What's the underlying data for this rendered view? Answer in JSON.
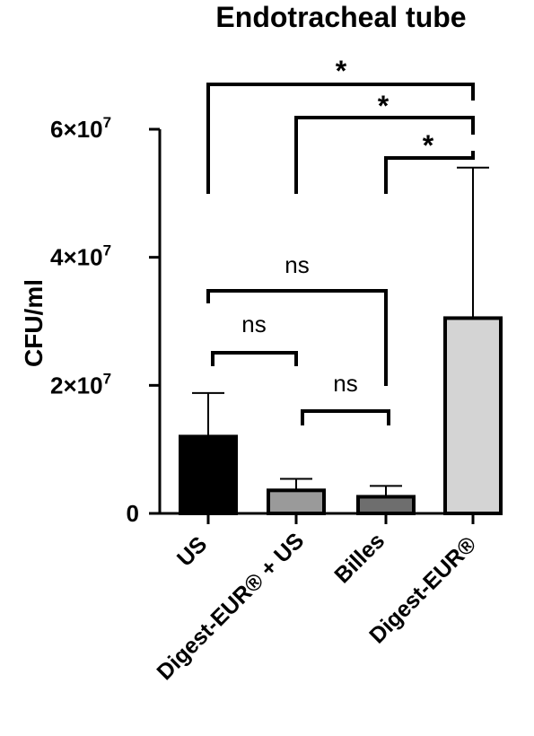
{
  "chart_data": {
    "type": "bar",
    "title": "Endotracheal tube",
    "ylabel": "CFU/ml",
    "xlabel": "",
    "ylim": [
      0,
      60000000
    ],
    "yticks": [
      {
        "value": 0,
        "label": "0"
      },
      {
        "value": 20000000,
        "mant": "2×10",
        "exp": "7"
      },
      {
        "value": 40000000,
        "mant": "4×10",
        "exp": "7"
      },
      {
        "value": 60000000,
        "mant": "6×10",
        "exp": "7"
      }
    ],
    "categories": [
      "US",
      "Digest-EUR® + US",
      "Billes",
      "Digest-EUR®"
    ],
    "values": [
      12000000,
      3600000,
      2600000,
      30500000
    ],
    "errors": [
      6800000,
      1800000,
      1700000,
      23500000
    ],
    "colors": [
      "#000000",
      "#9a9a9a",
      "#6e6e6e",
      "#d4d4d4"
    ],
    "comparisons": [
      {
        "from": 0,
        "to": 3,
        "label": "*"
      },
      {
        "from": 1,
        "to": 3,
        "label": "*"
      },
      {
        "from": 2,
        "to": 3,
        "label": "*"
      },
      {
        "from": 0,
        "to": 2,
        "label": "ns"
      },
      {
        "from": 0,
        "to": 1,
        "label": "ns"
      },
      {
        "from": 1,
        "to": 2,
        "label": "ns"
      }
    ],
    "grid": false,
    "legend": "none"
  }
}
